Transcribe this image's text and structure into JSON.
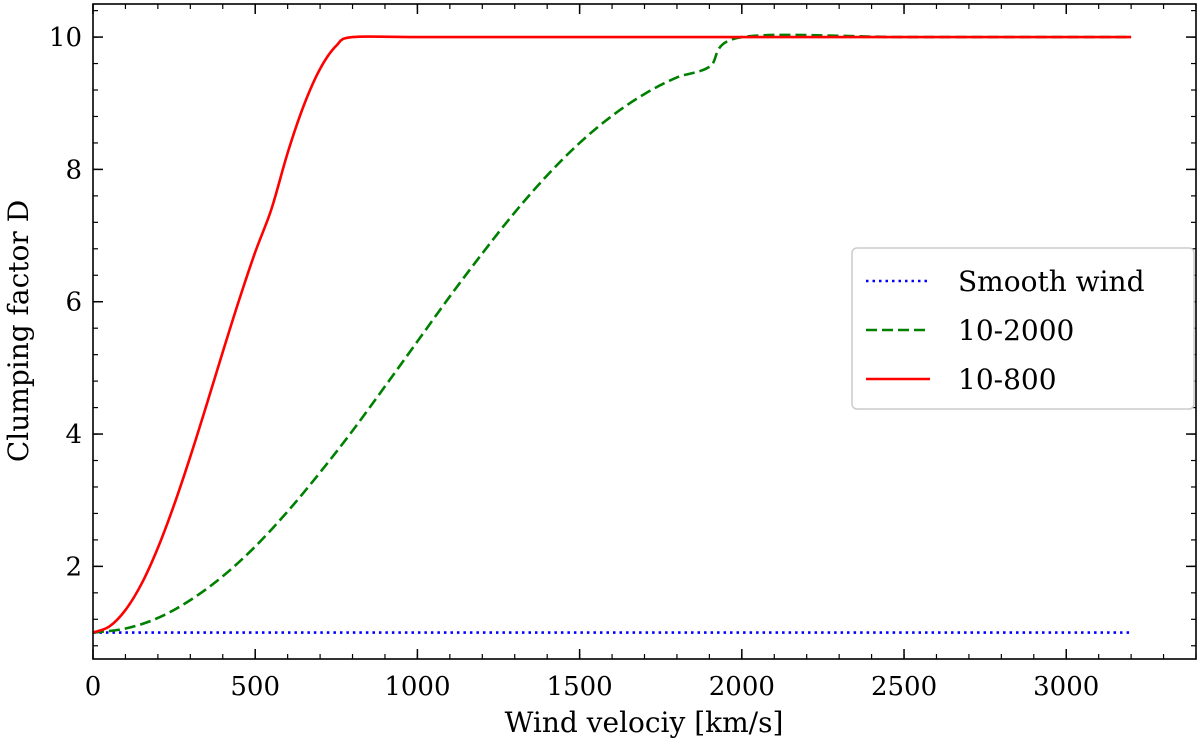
{
  "chart_data": {
    "type": "line",
    "title": "",
    "xlabel": "Wind velociy [km/s]",
    "ylabel": "Clumping factor D",
    "xlim": [
      0,
      3400
    ],
    "ylim": [
      0.6,
      10.5
    ],
    "xticks": [
      0,
      500,
      1000,
      1500,
      2000,
      2500,
      3000
    ],
    "yticks": [
      2,
      4,
      6,
      8,
      10
    ],
    "grid": false,
    "legend_position": "center-right",
    "series": [
      {
        "name": "Smooth wind",
        "color": "#0000ff",
        "style": "dotted",
        "x": [
          0,
          3200
        ],
        "y": [
          1,
          1
        ]
      },
      {
        "name": "10-2000",
        "color": "#008000",
        "style": "dashed",
        "x": [
          0,
          100,
          200,
          300,
          400,
          500,
          600,
          700,
          800,
          900,
          1000,
          1100,
          1200,
          1300,
          1400,
          1500,
          1600,
          1700,
          1800,
          1900,
          2000,
          2500,
          3000,
          3200
        ],
        "y": [
          1.0,
          1.06,
          1.22,
          1.49,
          1.85,
          2.3,
          2.83,
          3.42,
          4.05,
          4.72,
          5.4,
          6.08,
          6.73,
          7.35,
          7.91,
          8.4,
          8.81,
          9.14,
          9.39,
          9.55,
          10.0,
          10.0,
          10.0,
          10.0
        ]
      },
      {
        "name": "10-800",
        "color": "#ff0000",
        "style": "solid",
        "x": [
          0,
          50,
          100,
          150,
          200,
          250,
          300,
          350,
          400,
          450,
          500,
          550,
          600,
          650,
          700,
          750,
          800,
          1000,
          1500,
          2000,
          2500,
          3000,
          3200
        ],
        "y": [
          1.0,
          1.09,
          1.34,
          1.74,
          2.28,
          2.93,
          3.66,
          4.44,
          5.24,
          6.02,
          6.75,
          7.4,
          8.25,
          8.97,
          9.52,
          9.87,
          10.0,
          10.0,
          10.0,
          10.0,
          10.0,
          10.0,
          10.0
        ]
      }
    ]
  }
}
